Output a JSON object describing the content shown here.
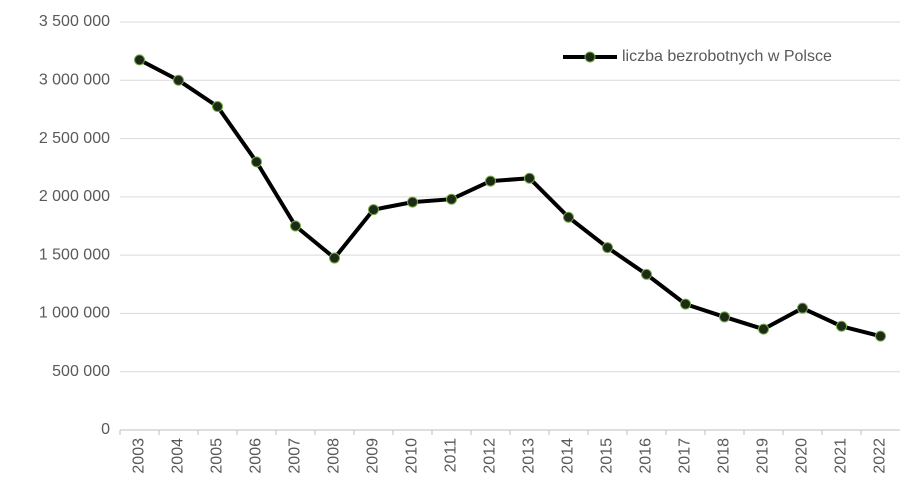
{
  "chart_data": {
    "type": "line",
    "categories": [
      "2003",
      "2004",
      "2005",
      "2006",
      "2007",
      "2008",
      "2009",
      "2010",
      "2011",
      "2012",
      "2013",
      "2014",
      "2015",
      "2016",
      "2017",
      "2018",
      "2019",
      "2020",
      "2021",
      "2022"
    ],
    "series": [
      {
        "name": "liczba bezrobotnych w Polsce",
        "color": "#000000",
        "marker_fill": "#1f2a16",
        "marker_edge": "#70ad47",
        "values": [
          3175000,
          3000000,
          2775000,
          2300000,
          1750000,
          1475000,
          1890000,
          1955000,
          1980000,
          2135000,
          2160000,
          1825000,
          1565000,
          1335000,
          1080000,
          970000,
          865000,
          1045000,
          890000,
          805000
        ]
      }
    ],
    "ylim": [
      0,
      3500000
    ],
    "yticks": [
      0,
      {
        "value": 500000,
        "label": "500 000"
      },
      {
        "value": 1000000,
        "label": "1 000 000"
      },
      {
        "value": 1500000,
        "label": "1 500 000"
      },
      {
        "value": 2000000,
        "label": "2 000 000"
      },
      {
        "value": 2500000,
        "label": "2 500 000"
      },
      {
        "value": 3000000,
        "label": "3 000 000"
      },
      {
        "value": 3500000,
        "label": "3 500 000"
      }
    ],
    "grid": true,
    "legend": "upper right"
  }
}
